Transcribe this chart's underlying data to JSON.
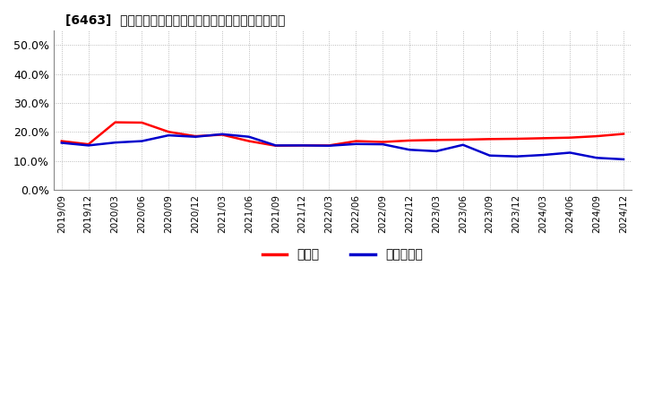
{
  "title": "[6463]  現預金、有利子負債の総資産に対する比率の推移",
  "legend_cash": "現預金",
  "legend_debt": "有利子負債",
  "cash_color": "#ff0000",
  "debt_color": "#0000cc",
  "background_color": "#ffffff",
  "plot_bg_color": "#ffffff",
  "grid_color": "#aaaaaa",
  "ylim": [
    0.0,
    0.55
  ],
  "yticks": [
    0.0,
    0.1,
    0.2,
    0.3,
    0.4,
    0.5
  ],
  "x_labels": [
    "2019/09",
    "2019/12",
    "2020/03",
    "2020/06",
    "2020/09",
    "2020/12",
    "2021/03",
    "2021/06",
    "2021/09",
    "2021/12",
    "2022/03",
    "2022/06",
    "2022/09",
    "2022/12",
    "2023/03",
    "2023/06",
    "2023/09",
    "2023/12",
    "2024/03",
    "2024/06",
    "2024/09",
    "2024/12"
  ],
  "cash_values": [
    0.168,
    0.157,
    0.233,
    0.232,
    0.2,
    0.185,
    0.19,
    0.168,
    0.152,
    0.153,
    0.153,
    0.168,
    0.165,
    0.17,
    0.172,
    0.173,
    0.175,
    0.176,
    0.178,
    0.18,
    0.185,
    0.193
  ],
  "debt_values": [
    0.162,
    0.153,
    0.163,
    0.168,
    0.188,
    0.183,
    0.192,
    0.183,
    0.153,
    0.153,
    0.152,
    0.158,
    0.157,
    0.138,
    0.133,
    0.155,
    0.118,
    0.115,
    0.12,
    0.128,
    0.11,
    0.105
  ]
}
